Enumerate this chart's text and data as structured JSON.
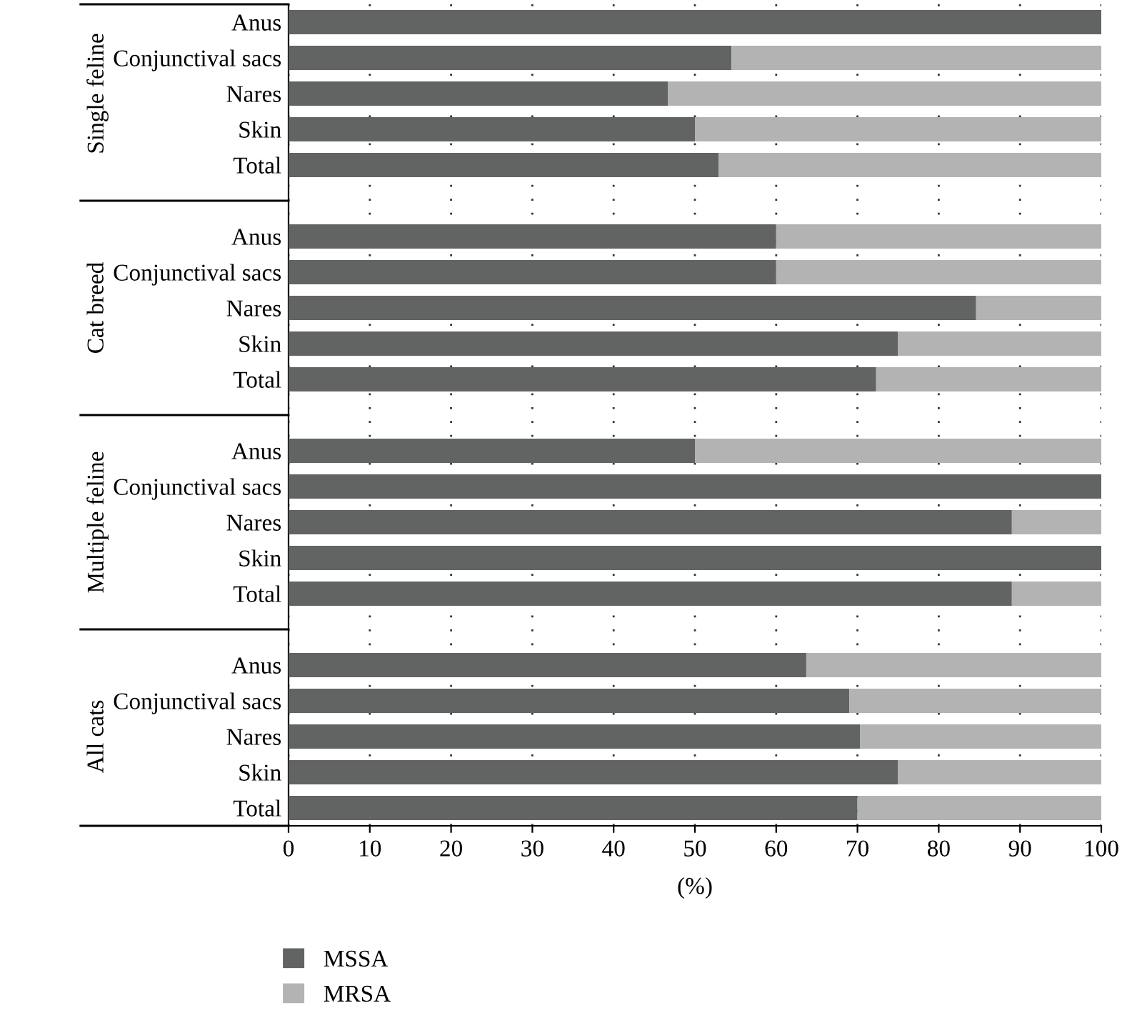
{
  "chart_data": {
    "type": "bar",
    "orientation": "horizontal",
    "stacked": true,
    "xlabel": "(%)",
    "categories": [
      "Anus",
      "Conjunctival sacs",
      "Nares",
      "Skin",
      "Total",
      null,
      "Anus",
      "Conjunctival sacs",
      "Nares",
      "Skin",
      "Total",
      null,
      "Anus",
      "Conjunctival sacs",
      "Nares",
      "Skin",
      "Total",
      null,
      "Anus",
      "Conjunctival sacs",
      "Nares",
      "Skin",
      "Total"
    ],
    "series": [
      {
        "name": "MSSA",
        "color": "#626463",
        "values": [
          100,
          54.5,
          46.7,
          50,
          52.9,
          null,
          60,
          60,
          84.6,
          75,
          72.3,
          null,
          50,
          100,
          89,
          100,
          89,
          null,
          63.7,
          69,
          70.3,
          75,
          70
        ]
      },
      {
        "name": "MRSA",
        "color": "#b3b3b3",
        "values": [
          0,
          45.5,
          53.3,
          50,
          47.1,
          null,
          40,
          40,
          15.4,
          25,
          27.7,
          null,
          50,
          0,
          11,
          0,
          11,
          null,
          36.3,
          31,
          29.7,
          25,
          30
        ]
      }
    ],
    "annotations": [
      "Single feline",
      "Cat breed",
      "Multiple feline",
      "All cats"
    ],
    "xlim": [
      0,
      100
    ],
    "xticks": [
      0,
      10,
      20,
      30,
      40,
      50,
      60,
      70,
      80,
      90,
      100
    ],
    "grid": "x",
    "legend": "bottom left"
  }
}
